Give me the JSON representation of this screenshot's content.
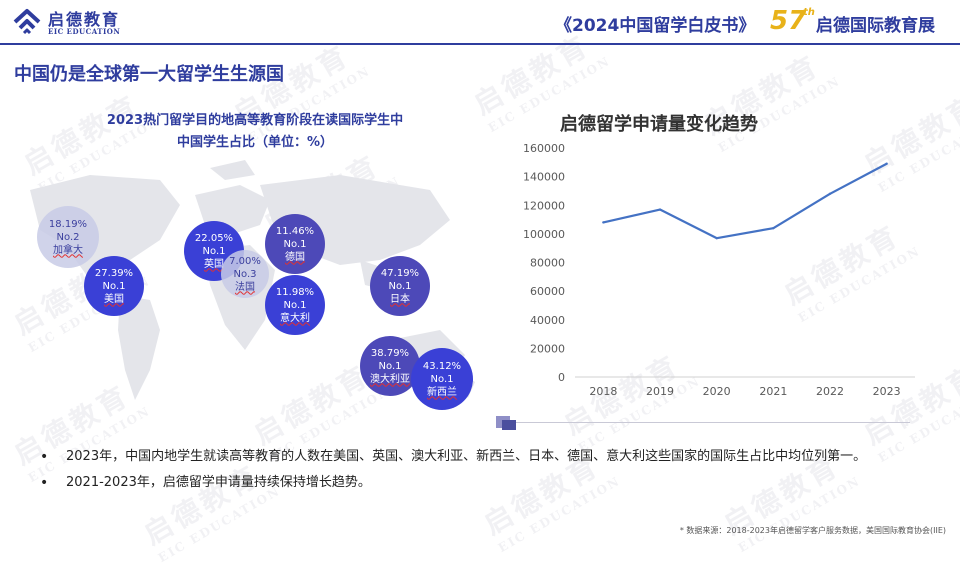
{
  "header": {
    "logo_cn": "启德教育",
    "logo_en": "EIC EDUCATION",
    "report_title": "《2024中国留学白皮书》",
    "expo_number": "57",
    "expo_suffix": "th",
    "expo_name": "启德国际教育展"
  },
  "page": {
    "heading": "中国仍是全球第一大留学生生源国"
  },
  "map": {
    "title_line1": "2023热门留学目的地高等教育阶段在读国际学生中",
    "title_line2": "中国学生占比（单位：%）",
    "bubbles": [
      {
        "pct": "18.19%",
        "rank": "No.2",
        "country": "加拿大",
        "style": "dim"
      },
      {
        "pct": "27.39%",
        "rank": "No.1",
        "country": "美国",
        "style": "dark"
      },
      {
        "pct": "22.05%",
        "rank": "No.1",
        "country": "英国",
        "style": "dark"
      },
      {
        "pct": "7.00%",
        "rank": "No.3",
        "country": "法国",
        "style": "dim"
      },
      {
        "pct": "11.46%",
        "rank": "No.1",
        "country": "德国",
        "style": "mid"
      },
      {
        "pct": "11.98%",
        "rank": "No.1",
        "country": "意大利",
        "style": "dark"
      },
      {
        "pct": "47.19%",
        "rank": "No.1",
        "country": "日本",
        "style": "mid"
      },
      {
        "pct": "38.79%",
        "rank": "No.1",
        "country": "澳大利亚",
        "style": "mid"
      },
      {
        "pct": "43.12%",
        "rank": "No.1",
        "country": "新西兰",
        "style": "dark"
      }
    ]
  },
  "chart_data": {
    "type": "line",
    "title": "启德留学申请量变化趋势",
    "categories": [
      "2018",
      "2019",
      "2020",
      "2021",
      "2022",
      "2023"
    ],
    "values": [
      108000,
      117000,
      97000,
      104000,
      128000,
      149000
    ],
    "yticks": [
      "0",
      "20000",
      "40000",
      "60000",
      "80000",
      "100000",
      "120000",
      "140000",
      "160000"
    ],
    "ylim": [
      0,
      160000
    ],
    "grid": false,
    "color": "#4472c4"
  },
  "bullets": [
    "2023年，中国内地学生就读高等教育的人数在美国、英国、澳大利亚、新西兰、日本、德国、意大利这些国家的国际生占比中均位列第一。",
    "2021-2023年，启德留学申请量持续保持增长趋势。"
  ],
  "bullet_marker": "•",
  "footer": {
    "source": "* 数据来源：2018-2023年启德留学客户服务数据，美国国际教育协会(IIE)"
  },
  "watermark": {
    "cn": "启德教育",
    "en": "EIC EDUCATION"
  },
  "colors": {
    "brand_blue": "#2f3d9e",
    "accent_gold": "#e8b21a",
    "bubble_dark": "#3a40d6",
    "line": "#4472c4"
  }
}
